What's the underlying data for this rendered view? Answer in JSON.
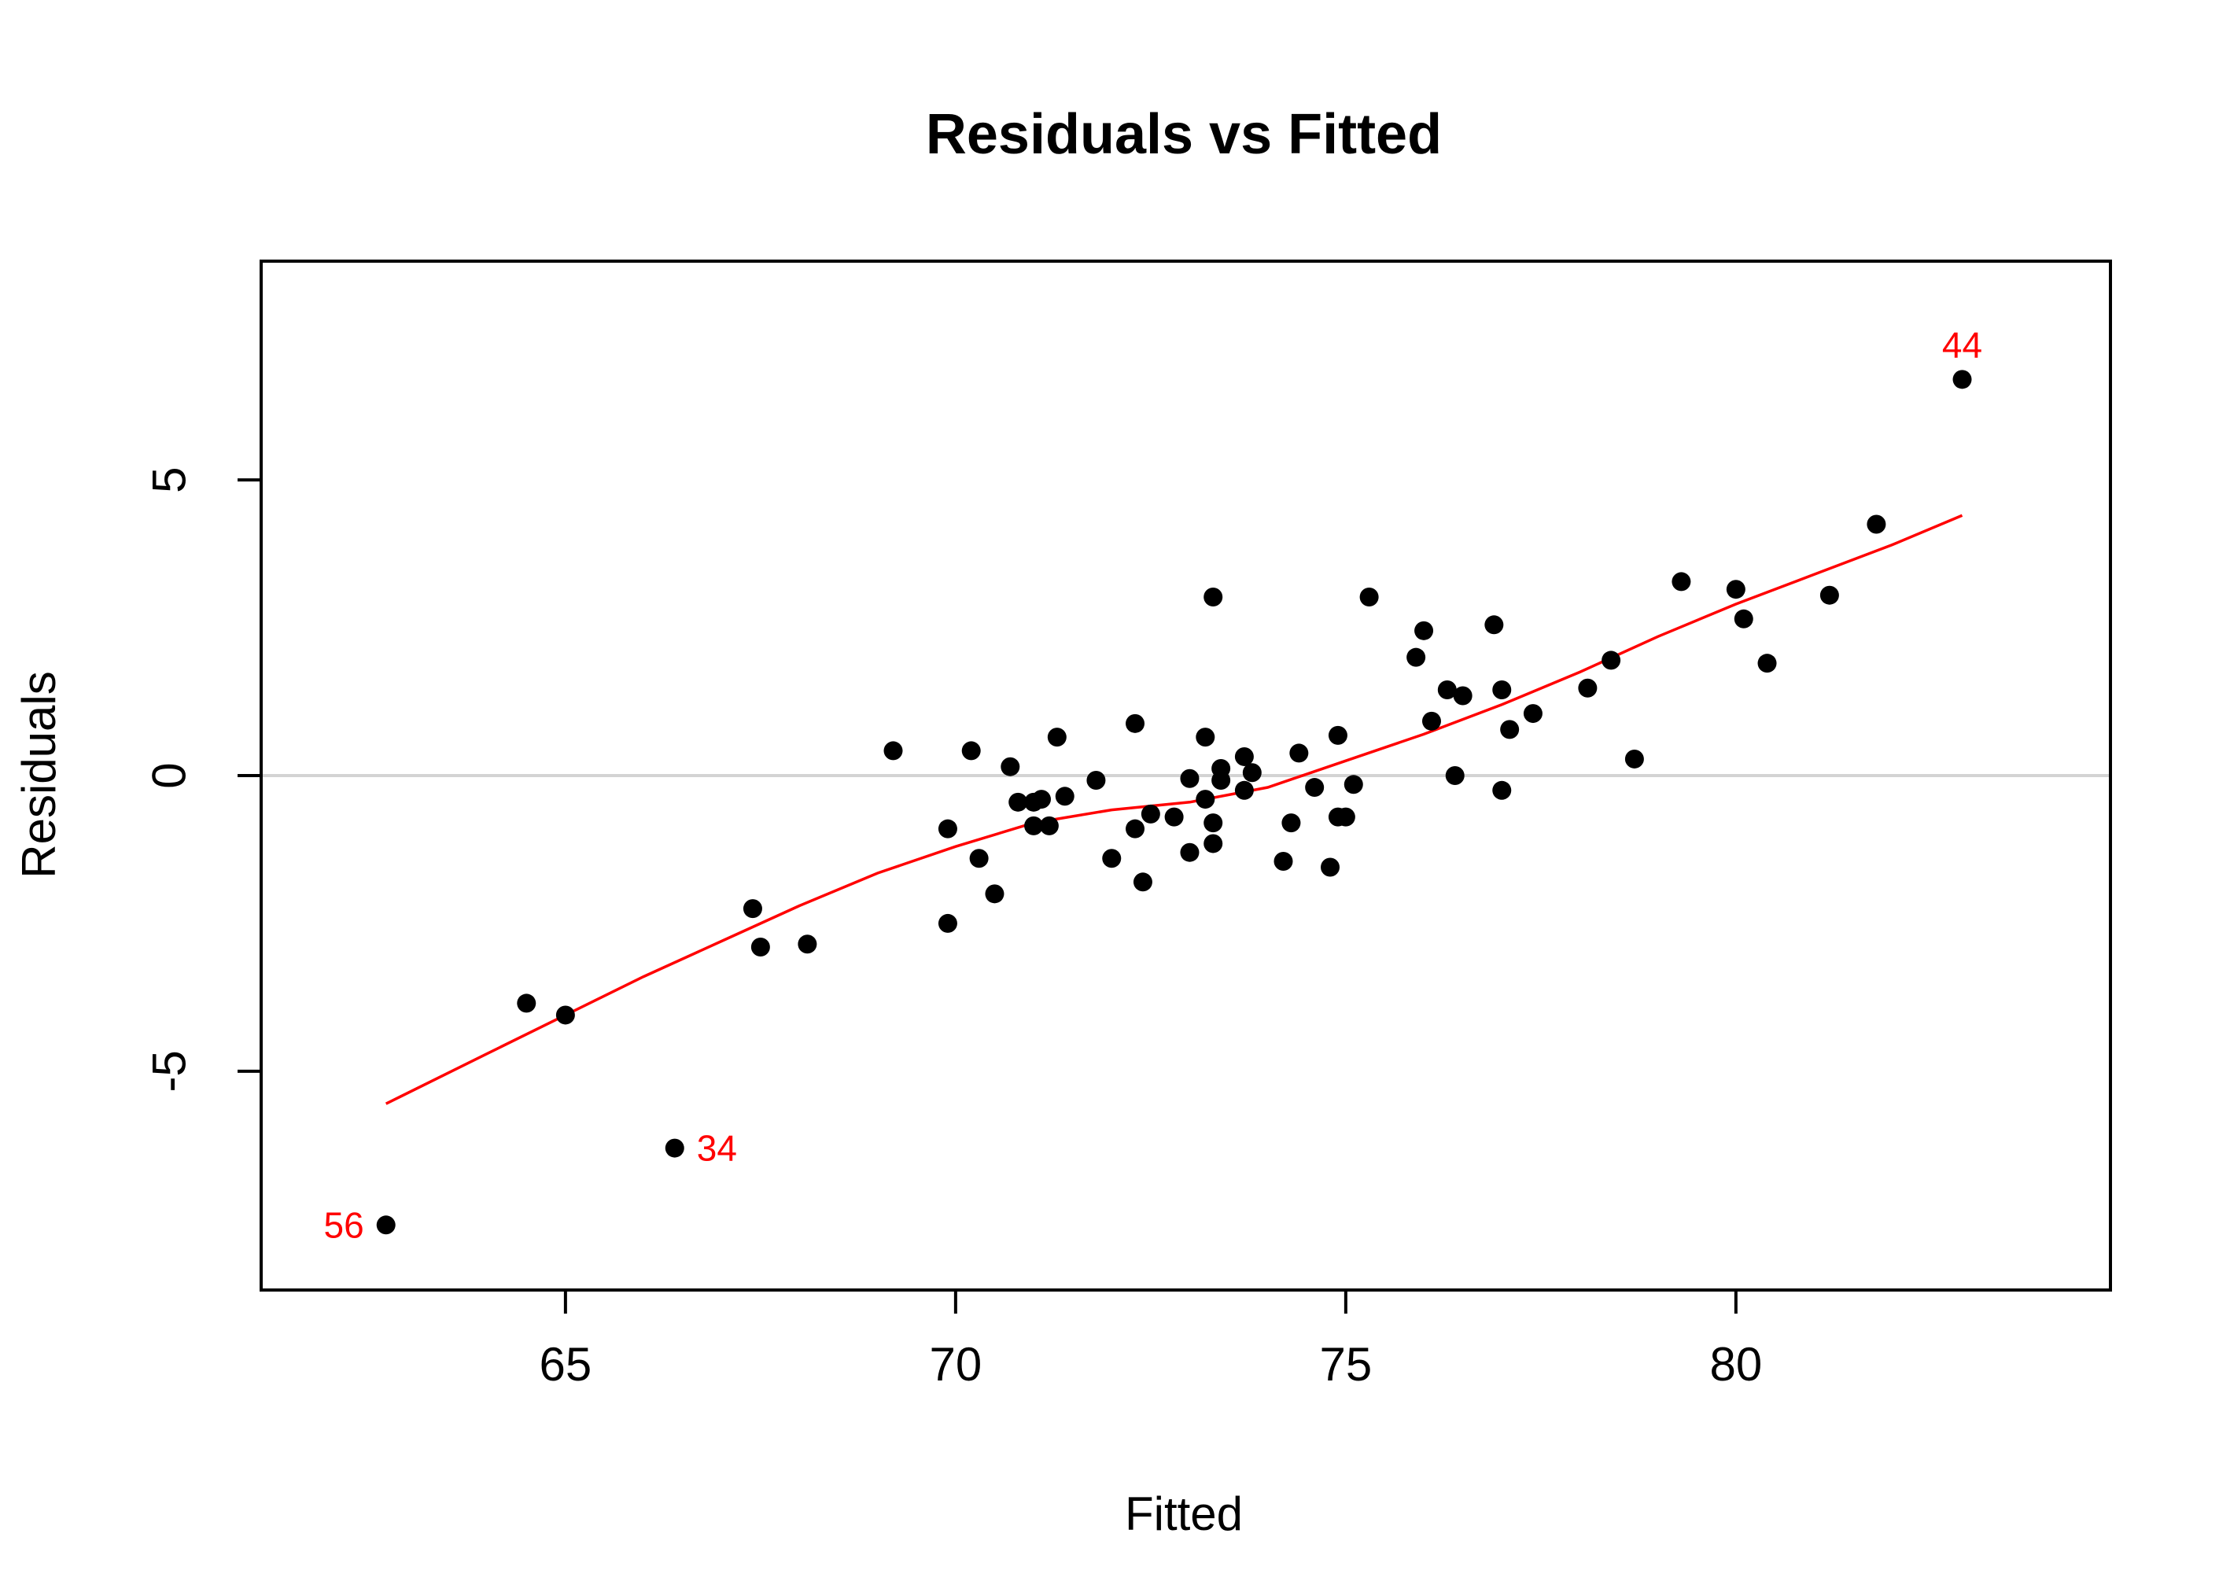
{
  "chart_data": {
    "type": "scatter",
    "title": "Residuals vs Fitted",
    "xlabel": "Fitted",
    "ylabel": "Residuals",
    "xlim": [
      61.1,
      84.8
    ],
    "ylim": [
      -8.7,
      8.7
    ],
    "xticks": [
      65,
      70,
      75,
      80
    ],
    "yticks": [
      -5,
      0,
      5
    ],
    "reference_line_y": 0,
    "colors": {
      "points": "#000000",
      "smoother": "#ff0000",
      "reference_line": "#d3d3d3",
      "labels": "#ff0000"
    },
    "points": [
      {
        "x": 62.7,
        "y": -7.6
      },
      {
        "x": 64.5,
        "y": -3.85
      },
      {
        "x": 65.0,
        "y": -4.05
      },
      {
        "x": 66.4,
        "y": -6.3
      },
      {
        "x": 67.4,
        "y": -2.25
      },
      {
        "x": 67.5,
        "y": -2.9
      },
      {
        "x": 68.1,
        "y": -2.85
      },
      {
        "x": 69.2,
        "y": 0.42
      },
      {
        "x": 69.9,
        "y": -0.9
      },
      {
        "x": 69.9,
        "y": -2.5
      },
      {
        "x": 70.2,
        "y": 0.42
      },
      {
        "x": 70.3,
        "y": -1.4
      },
      {
        "x": 70.5,
        "y": -2.0
      },
      {
        "x": 70.7,
        "y": 0.15
      },
      {
        "x": 70.8,
        "y": -0.45
      },
      {
        "x": 71.0,
        "y": -0.85
      },
      {
        "x": 71.0,
        "y": -0.45
      },
      {
        "x": 71.1,
        "y": -0.4
      },
      {
        "x": 71.2,
        "y": -0.85
      },
      {
        "x": 71.3,
        "y": 0.65
      },
      {
        "x": 71.4,
        "y": -0.35
      },
      {
        "x": 71.8,
        "y": -0.08
      },
      {
        "x": 72.0,
        "y": -1.4
      },
      {
        "x": 72.3,
        "y": 0.88
      },
      {
        "x": 72.3,
        "y": -0.9
      },
      {
        "x": 72.4,
        "y": -1.8
      },
      {
        "x": 72.5,
        "y": -0.65
      },
      {
        "x": 72.8,
        "y": -0.7
      },
      {
        "x": 73.0,
        "y": -0.05
      },
      {
        "x": 73.0,
        "y": -1.3
      },
      {
        "x": 73.2,
        "y": 0.65
      },
      {
        "x": 73.2,
        "y": -0.4
      },
      {
        "x": 73.3,
        "y": -0.8
      },
      {
        "x": 73.3,
        "y": -1.15
      },
      {
        "x": 73.3,
        "y": 3.02
      },
      {
        "x": 73.4,
        "y": 0.12
      },
      {
        "x": 73.4,
        "y": -0.08
      },
      {
        "x": 73.7,
        "y": 0.32
      },
      {
        "x": 73.7,
        "y": -0.25
      },
      {
        "x": 73.8,
        "y": 0.05
      },
      {
        "x": 74.2,
        "y": -1.45
      },
      {
        "x": 74.3,
        "y": -0.8
      },
      {
        "x": 74.4,
        "y": 0.38
      },
      {
        "x": 74.6,
        "y": -0.2
      },
      {
        "x": 74.8,
        "y": -1.55
      },
      {
        "x": 74.9,
        "y": -0.7
      },
      {
        "x": 74.9,
        "y": 0.68
      },
      {
        "x": 75.0,
        "y": -0.7
      },
      {
        "x": 75.1,
        "y": -0.15
      },
      {
        "x": 75.3,
        "y": 3.02
      },
      {
        "x": 75.9,
        "y": 2.0
      },
      {
        "x": 76.0,
        "y": 2.45
      },
      {
        "x": 76.1,
        "y": 0.92
      },
      {
        "x": 76.3,
        "y": 1.45
      },
      {
        "x": 76.4,
        "y": 0.0
      },
      {
        "x": 76.5,
        "y": 1.35
      },
      {
        "x": 76.9,
        "y": 2.55
      },
      {
        "x": 77.0,
        "y": -0.25
      },
      {
        "x": 77.0,
        "y": 1.45
      },
      {
        "x": 77.1,
        "y": 0.78
      },
      {
        "x": 77.4,
        "y": 1.05
      },
      {
        "x": 78.1,
        "y": 1.48
      },
      {
        "x": 78.4,
        "y": 1.95
      },
      {
        "x": 78.7,
        "y": 0.28
      },
      {
        "x": 79.3,
        "y": 3.28
      },
      {
        "x": 80.0,
        "y": 3.15
      },
      {
        "x": 80.1,
        "y": 2.65
      },
      {
        "x": 80.4,
        "y": 1.9
      },
      {
        "x": 81.2,
        "y": 3.05
      },
      {
        "x": 81.8,
        "y": 4.25
      },
      {
        "x": 82.9,
        "y": 6.7
      }
    ],
    "smoother": [
      {
        "x": 62.7,
        "y": -5.55
      },
      {
        "x": 64.0,
        "y": -4.7
      },
      {
        "x": 65.0,
        "y": -4.05
      },
      {
        "x": 66.0,
        "y": -3.4
      },
      {
        "x": 67.0,
        "y": -2.8
      },
      {
        "x": 68.0,
        "y": -2.2
      },
      {
        "x": 69.0,
        "y": -1.65
      },
      {
        "x": 70.0,
        "y": -1.2
      },
      {
        "x": 71.0,
        "y": -0.8
      },
      {
        "x": 72.0,
        "y": -0.58
      },
      {
        "x": 73.0,
        "y": -0.45
      },
      {
        "x": 74.0,
        "y": -0.2
      },
      {
        "x": 75.0,
        "y": 0.25
      },
      {
        "x": 76.0,
        "y": 0.7
      },
      {
        "x": 77.0,
        "y": 1.2
      },
      {
        "x": 78.0,
        "y": 1.75
      },
      {
        "x": 79.0,
        "y": 2.35
      },
      {
        "x": 80.0,
        "y": 2.9
      },
      {
        "x": 81.0,
        "y": 3.4
      },
      {
        "x": 82.0,
        "y": 3.9
      },
      {
        "x": 82.9,
        "y": 4.4
      }
    ],
    "labeled_points": [
      {
        "label": "44",
        "x": 82.9,
        "y": 6.7,
        "position": "above"
      },
      {
        "label": "34",
        "x": 66.4,
        "y": -6.3,
        "position": "right"
      },
      {
        "label": "56",
        "x": 62.7,
        "y": -7.6,
        "position": "left"
      }
    ]
  }
}
